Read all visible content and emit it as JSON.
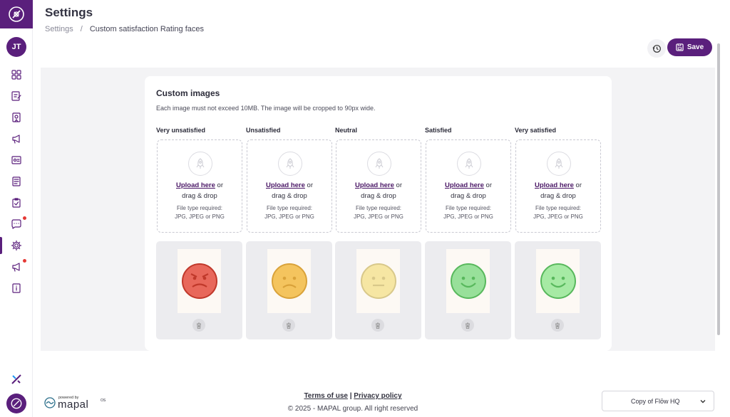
{
  "sidebar": {
    "avatar_initials": "JT",
    "items": [
      {
        "icon": "dashboard-icon"
      },
      {
        "icon": "edit-document-icon"
      },
      {
        "icon": "badge-icon"
      },
      {
        "icon": "megaphone-icon"
      },
      {
        "icon": "id-card-icon"
      },
      {
        "icon": "document-list-icon"
      },
      {
        "icon": "clipboard-check-icon"
      },
      {
        "icon": "chat-icon",
        "notification": true
      },
      {
        "icon": "settings-icon",
        "active": true
      },
      {
        "icon": "announcement-icon",
        "notification": true
      },
      {
        "icon": "info-book-icon"
      }
    ]
  },
  "header": {
    "title": "Settings",
    "breadcrumb": [
      "Settings",
      "/",
      "Custom satisfaction Rating faces"
    ],
    "save_label": "Save"
  },
  "card": {
    "title": "Custom images",
    "description": "Each image must not exceed 10MB. The image will be cropped to 90px wide.",
    "upload_link": "Upload here",
    "upload_suffix": " or",
    "upload_line2": "drag & drop",
    "file_type_line1": "File type required:",
    "file_type_line2": "JPG, JPEG or PNG",
    "ratings": [
      {
        "label": "Very unsatisfied",
        "face": "angry",
        "color": "#e8685b"
      },
      {
        "label": "Unsatisfied",
        "face": "sad",
        "color": "#f4c45e"
      },
      {
        "label": "Neutral",
        "face": "neutral",
        "color": "#f6e6a3"
      },
      {
        "label": "Satisfied",
        "face": "smile",
        "color": "#98e09a"
      },
      {
        "label": "Very satisfied",
        "face": "smile",
        "color": "#a6eaa4"
      }
    ]
  },
  "footer": {
    "terms": "Terms of use",
    "separator": " | ",
    "privacy": "Privacy policy",
    "copyright": "© 2025 - MAPAL group. All right reserved",
    "powered_by": "powered by",
    "brand": "mapal",
    "brand_suffix": "OS",
    "org_select": "Copy of Flōw HQ"
  },
  "colors": {
    "brand": "#5a1f7c",
    "link": "#4a1766"
  }
}
